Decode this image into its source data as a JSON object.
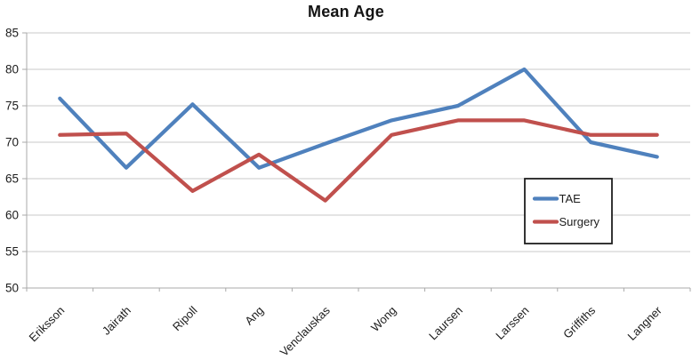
{
  "chart_data": {
    "type": "line",
    "title": "Mean Age",
    "categories": [
      "Eriksson",
      "Jairath",
      "Ripoll",
      "Ang",
      "Venclauskas",
      "Wong",
      "Laursen",
      "Larssen",
      "Griffiths",
      "Langner"
    ],
    "series": [
      {
        "name": "TAE",
        "color": "#4F81BD",
        "values": [
          76,
          66.5,
          75.2,
          66.5,
          69.8,
          73,
          75,
          80,
          70,
          68
        ]
      },
      {
        "name": "Surgery",
        "color": "#C0504D",
        "values": [
          71,
          71.2,
          63.3,
          68.3,
          62,
          71,
          73,
          73,
          71,
          71
        ]
      }
    ],
    "xlabel": "",
    "ylabel": "",
    "ylim": [
      50,
      85
    ],
    "yticks": [
      50,
      55,
      60,
      65,
      70,
      75,
      80,
      85
    ],
    "grid": true,
    "legend": {
      "position": "inside-right",
      "entries": [
        "TAE",
        "Surgery"
      ]
    }
  }
}
